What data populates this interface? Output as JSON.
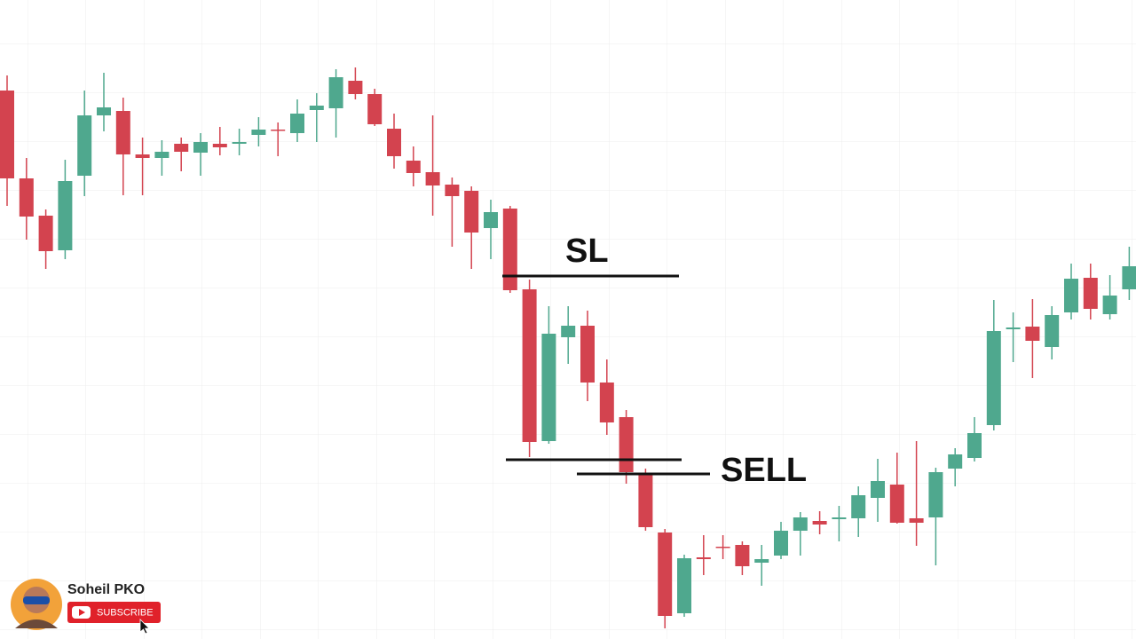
{
  "chart_data": {
    "type": "candlestick",
    "open": [
      618,
      519,
      477,
      438,
      522,
      590,
      595,
      546,
      542,
      558,
      548,
      558,
      558,
      568,
      574,
      570,
      596,
      598,
      629,
      614,
      575,
      539,
      526,
      512,
      505,
      463,
      485,
      394,
      223,
      340,
      353,
      289,
      250,
      186,
      120,
      29,
      92,
      104,
      106,
      86,
      94,
      122,
      133,
      135,
      136,
      159,
      174,
      136,
      137,
      192,
      204,
      241,
      349,
      352,
      329,
      368,
      407,
      366,
      394
    ],
    "high": [
      635,
      542,
      484,
      540,
      618,
      638,
      610,
      565,
      562,
      565,
      570,
      577,
      575,
      588,
      582,
      608,
      615,
      642,
      644,
      620,
      592,
      555,
      590,
      520,
      510,
      495,
      488,
      405,
      375,
      375,
      370,
      315,
      258,
      192,
      124,
      95,
      117,
      117,
      110,
      106,
      132,
      143,
      144,
      150,
      172,
      203,
      210,
      223,
      193,
      215,
      250,
      382,
      368,
      383,
      375,
      423,
      423,
      410,
      442
    ],
    "low": [
      488,
      450,
      417,
      428,
      499,
      572,
      500,
      500,
      522,
      527,
      522,
      545,
      545,
      555,
      544,
      560,
      560,
      565,
      608,
      578,
      530,
      510,
      477,
      442,
      417,
      428,
      390,
      205,
      220,
      310,
      268,
      230,
      175,
      122,
      12,
      25,
      72,
      90,
      72,
      60,
      90,
      94,
      118,
      110,
      115,
      132,
      130,
      105,
      83,
      172,
      200,
      235,
      312,
      294,
      315,
      360,
      360,
      360,
      382
    ],
    "close": [
      519,
      476,
      437,
      516,
      590,
      599,
      546,
      542,
      549,
      549,
      560,
      554,
      560,
      574,
      573,
      592,
      601,
      633,
      614,
      580,
      544,
      525,
      511,
      499,
      458,
      481,
      393,
      222,
      344,
      353,
      289,
      244,
      188,
      126,
      26,
      91,
      90,
      103,
      82,
      90,
      122,
      137,
      129,
      137,
      162,
      178,
      131,
      131,
      188,
      208,
      232,
      347,
      351,
      336,
      365,
      406,
      372,
      387,
      420
    ],
    "up_color": "#4fa88e",
    "down_color": "#d3434f",
    "ylim": [
      0,
      720
    ],
    "grid": true,
    "levels": [
      {
        "label": "SL",
        "value": 409
      },
      {
        "value": 202
      },
      {
        "label": "SELL",
        "value": 186
      }
    ]
  },
  "channel": {
    "name": "Soheil PKO",
    "button": "SUBSCRIBE"
  }
}
